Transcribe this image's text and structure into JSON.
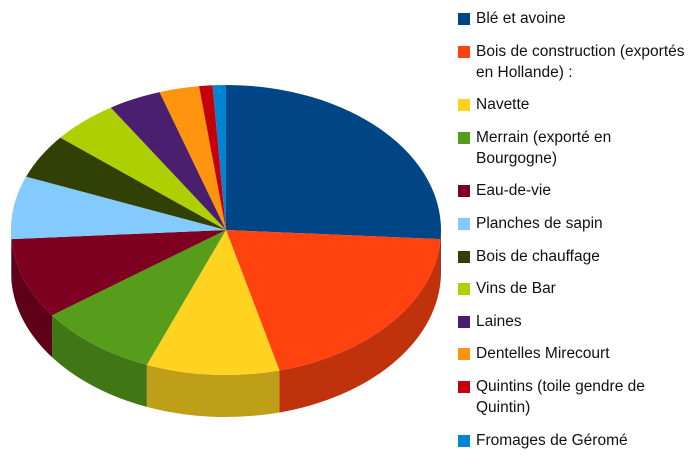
{
  "chart_data": {
    "type": "pie3d",
    "categories": [
      "Blé et avoine",
      "Bois de construction (exportés en Hollande) :",
      "Navette",
      "Merrain (exporté en Bourgogne)",
      "Eau-de-vie",
      "Planches de sapin",
      "Bois de chauffage",
      "Vins de Bar",
      "Laines",
      "Dentelles Mirecourt",
      "Quintins (toile gendre de Quintin)",
      "Fromages de Géromé"
    ],
    "values": [
      26,
      20,
      10,
      9,
      9,
      7,
      5,
      5,
      4,
      3,
      1,
      1
    ],
    "colors": [
      "#004586",
      "#ff420e",
      "#ffd320",
      "#579d1c",
      "#7e0021",
      "#83caff",
      "#314004",
      "#aecf00",
      "#4b1f6f",
      "#ff950e",
      "#c5000b",
      "#0084d1"
    ],
    "legend": "right"
  }
}
